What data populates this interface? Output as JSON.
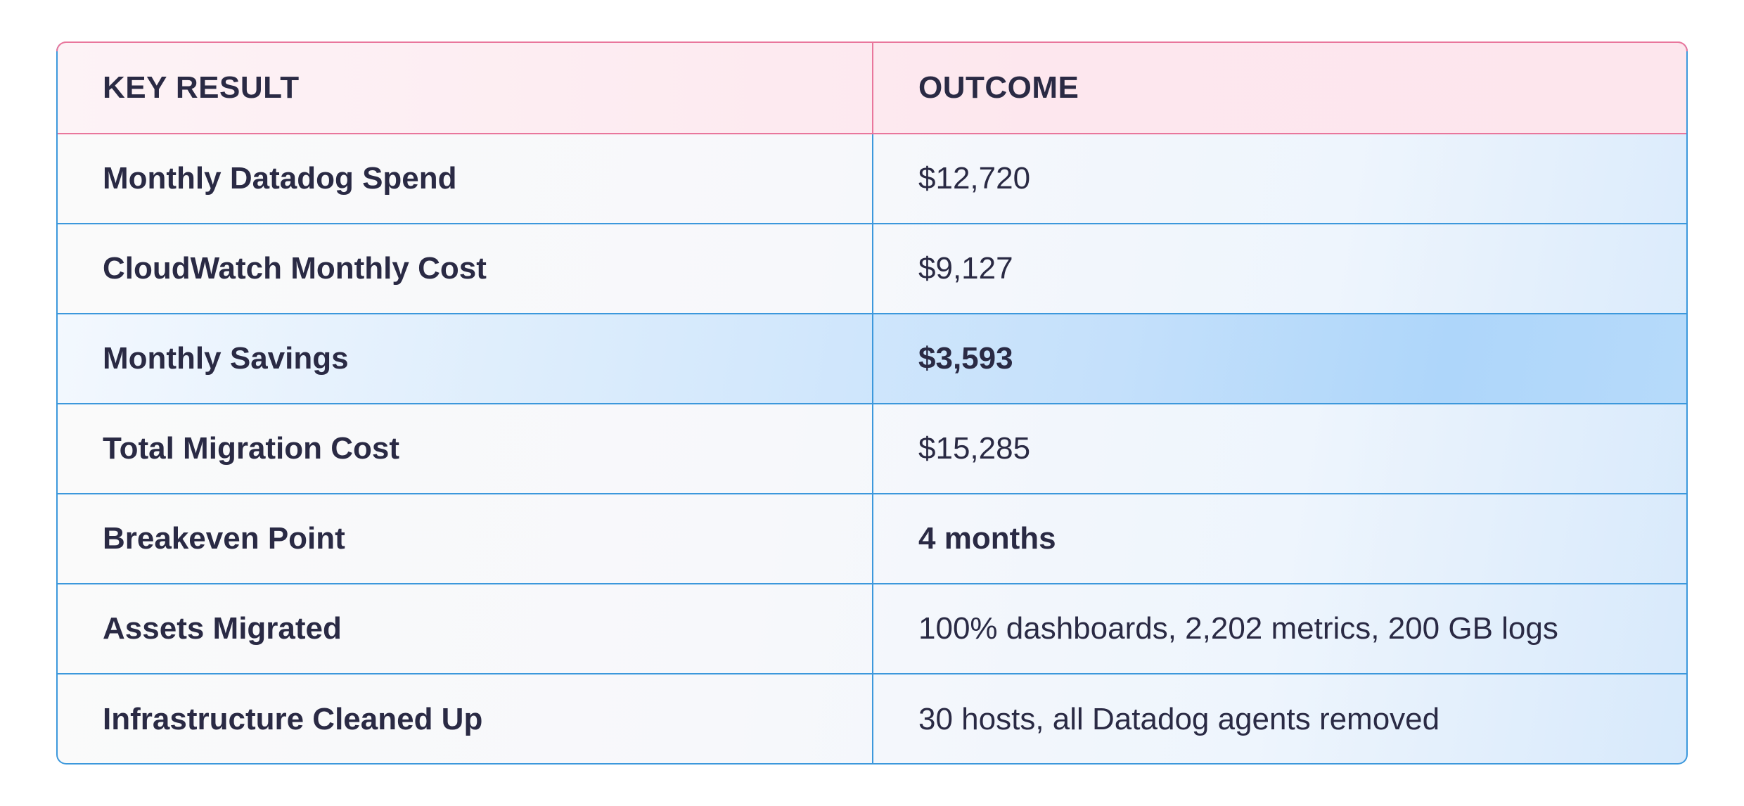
{
  "table": {
    "headers": {
      "key_result": "KEY RESULT",
      "outcome": "OUTCOME"
    },
    "rows": [
      {
        "key": "Monthly Datadog Spend",
        "value": "$12,720",
        "bold": false
      },
      {
        "key": "CloudWatch Monthly Cost",
        "value": "$9,127",
        "bold": false
      },
      {
        "key": "Monthly Savings",
        "value": "$3,593",
        "bold": true,
        "highlight": true
      },
      {
        "key": "Total Migration Cost",
        "value": "$15,285",
        "bold": false
      },
      {
        "key": "Breakeven Point",
        "value": "4 months",
        "bold": true
      },
      {
        "key": "Assets Migrated",
        "value": "100% dashboards, 2,202 metrics, 200 GB logs",
        "bold": false
      },
      {
        "key": "Infrastructure Cleaned Up",
        "value": "30 hosts, all Datadog agents removed",
        "bold": false
      }
    ]
  },
  "colors": {
    "header_accent": "#e9769c",
    "row_border": "#3c98dc",
    "highlight_blue": "#aed6fa",
    "text": "#2a2a44"
  }
}
